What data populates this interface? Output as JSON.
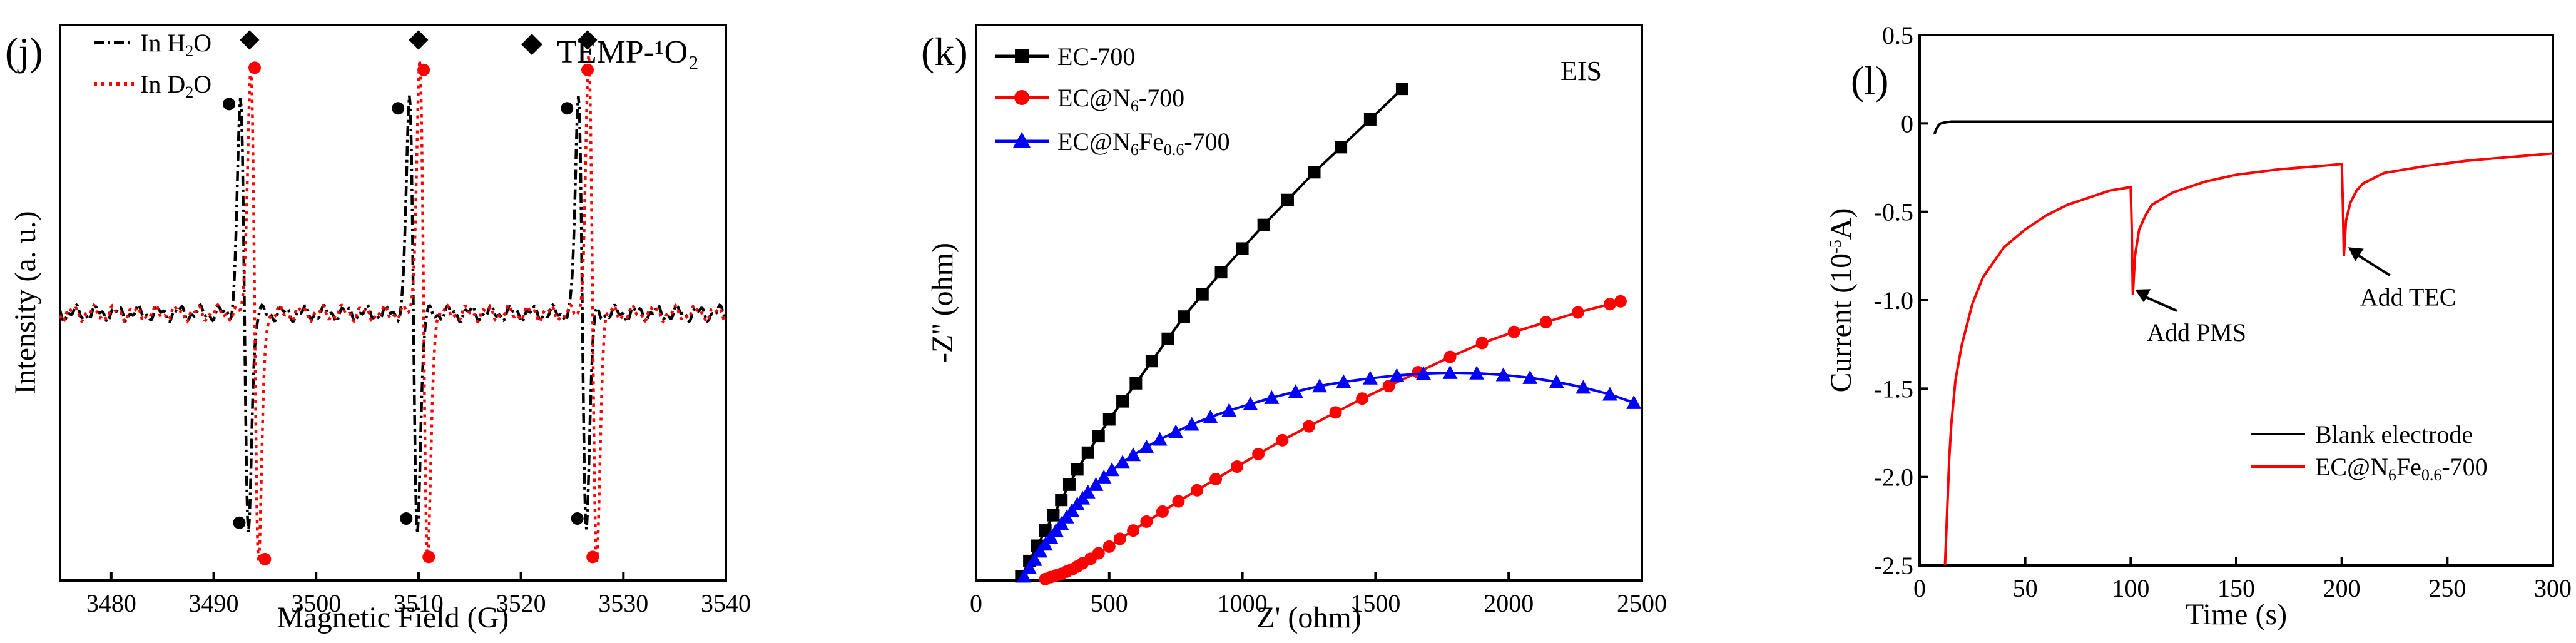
{
  "chart_data": [
    {
      "id": "j",
      "type": "line",
      "panel_label": "(j)",
      "xlabel": "Magnetic Field (G)",
      "ylabel": "Intensity (a. u.)",
      "xlim": [
        3475,
        3540
      ],
      "ylim": [
        -1.25,
        1.35
      ],
      "xticks": [
        3480,
        3490,
        3500,
        3510,
        3520,
        3530,
        3540
      ],
      "yticks_shown": false,
      "marker_label": "TEMP-¹O₂",
      "series": [
        {
          "name": "In H2O",
          "name_main": "In H",
          "name_sub": "2",
          "name_tail": "O",
          "color": "#000000",
          "style": "dash-dot",
          "peaks": [
            3493.0,
            3509.5,
            3526.0
          ],
          "amplitude": 1.0,
          "dots": [
            {
              "x": 3491.5,
              "y": 0.98
            },
            {
              "x": 3492.5,
              "y": -0.98
            },
            {
              "x": 3508.0,
              "y": 0.96
            },
            {
              "x": 3508.8,
              "y": -0.96
            },
            {
              "x": 3524.5,
              "y": 0.96
            },
            {
              "x": 3525.5,
              "y": -0.96
            }
          ]
        },
        {
          "name": "In D2O",
          "name_main": "In D",
          "name_sub": "2",
          "name_tail": "O",
          "color": "#ff0000",
          "style": "dot",
          "peaks": [
            3494.0,
            3510.5,
            3527.0
          ],
          "amplitude": 1.18,
          "dots": [
            {
              "x": 3494.0,
              "y": 1.15
            },
            {
              "x": 3495.0,
              "y": -1.15
            },
            {
              "x": 3510.5,
              "y": 1.14
            },
            {
              "x": 3511.0,
              "y": -1.14
            },
            {
              "x": 3526.5,
              "y": 1.14
            },
            {
              "x": 3527.0,
              "y": -1.14
            }
          ]
        }
      ],
      "diamonds_x": [
        3493.5,
        3510.0,
        3526.5
      ],
      "diamonds_y": 1.28
    },
    {
      "id": "k",
      "type": "line",
      "panel_label": "(k)",
      "annotation": "EIS",
      "xlabel": "Z' (ohm)",
      "ylabel": "-Z'' (ohm)",
      "xlim": [
        0,
        2500
      ],
      "ylim": [
        0,
        2000
      ],
      "xticks": [
        0,
        500,
        1000,
        1500,
        2000,
        2500
      ],
      "yticks_shown": false,
      "series": [
        {
          "name": "EC-700",
          "name_main": "EC-700",
          "name_sub": "",
          "name_tail": "",
          "color": "#000000",
          "marker": "square",
          "x": [
            170,
            200,
            230,
            260,
            290,
            320,
            350,
            380,
            420,
            460,
            500,
            550,
            600,
            660,
            720,
            780,
            850,
            920,
            1000,
            1080,
            1170,
            1270,
            1370,
            1480,
            1600
          ],
          "y": [
            15,
            70,
            125,
            180,
            235,
            290,
            345,
            400,
            460,
            520,
            580,
            645,
            710,
            790,
            870,
            950,
            1030,
            1110,
            1195,
            1280,
            1370,
            1470,
            1560,
            1660,
            1770
          ]
        },
        {
          "name": "EC@N6-700",
          "name_main": "EC@N",
          "name_sub": "6",
          "name_tail": "-700",
          "color": "#ff0000",
          "marker": "circle",
          "x": [
            260,
            280,
            300,
            320,
            340,
            360,
            380,
            400,
            430,
            460,
            500,
            540,
            590,
            640,
            700,
            760,
            830,
            900,
            980,
            1060,
            1150,
            1250,
            1350,
            1450,
            1550,
            1660,
            1780,
            1900,
            2020,
            2140,
            2260,
            2380,
            2420
          ],
          "y": [
            5,
            12,
            18,
            24,
            32,
            40,
            50,
            62,
            78,
            98,
            122,
            150,
            180,
            212,
            248,
            285,
            325,
            365,
            410,
            455,
            505,
            555,
            605,
            655,
            700,
            750,
            805,
            855,
            895,
            930,
            965,
            995,
            1005
          ]
        },
        {
          "name": "EC@N6Fe0.6-700",
          "name_main": "EC@N",
          "name_sub": "6",
          "name_tail": "Fe",
          "name_sub2": "0.6",
          "name_tail2": "-700",
          "color": "#0000ff",
          "marker": "triangle",
          "x": [
            180,
            200,
            220,
            240,
            260,
            280,
            300,
            320,
            340,
            360,
            380,
            400,
            420,
            450,
            480,
            510,
            550,
            590,
            640,
            690,
            750,
            810,
            880,
            950,
            1030,
            1110,
            1200,
            1290,
            1380,
            1480,
            1580,
            1680,
            1780,
            1880,
            1980,
            2080,
            2180,
            2280,
            2380,
            2470
          ],
          "y": [
            15,
            45,
            75,
            105,
            130,
            155,
            180,
            205,
            228,
            252,
            275,
            296,
            318,
            345,
            372,
            398,
            425,
            452,
            480,
            508,
            535,
            562,
            588,
            612,
            635,
            658,
            680,
            700,
            715,
            728,
            738,
            745,
            748,
            746,
            740,
            730,
            715,
            695,
            670,
            640
          ]
        }
      ]
    },
    {
      "id": "l",
      "type": "line",
      "panel_label": "(l)",
      "xlabel": "Time (s)",
      "ylabel": "Current (10",
      "ylabel_sup": "-5",
      "ylabel_tail": "A)",
      "xlim": [
        0,
        300
      ],
      "ylim": [
        -2.5,
        0.5
      ],
      "xticks": [
        0,
        50,
        100,
        150,
        200,
        250,
        300
      ],
      "yticks": [
        0.5,
        0,
        -0.5,
        -1.0,
        -1.5,
        -2.0,
        -2.5
      ],
      "ytick_labels": [
        "0.5",
        "0",
        "-0.5",
        "-1.0",
        "-1.5",
        "-2.0",
        "-2.5"
      ],
      "annotations": [
        {
          "text": "Add PMS",
          "x": 110,
          "y": -1.23,
          "arrow_to": [
            102,
            -0.94
          ]
        },
        {
          "text": "Add TEC",
          "x": 211,
          "y": -1.03,
          "arrow_to": [
            203,
            -0.7
          ]
        }
      ],
      "series": [
        {
          "name": "Blank electrode",
          "name_main": "Blank electrode",
          "name_sub": "",
          "name_tail": "",
          "color": "#000000",
          "x": [
            7,
            8,
            9,
            10,
            12,
            15,
            20,
            40,
            100,
            200,
            300
          ],
          "y": [
            -0.06,
            -0.03,
            -0.01,
            0.0,
            0.005,
            0.01,
            0.01,
            0.01,
            0.01,
            0.01,
            0.01
          ]
        },
        {
          "name": "EC@N6Fe0.6-700",
          "name_main": "EC@N",
          "name_sub": "6",
          "name_tail": "Fe",
          "name_sub2": "0.6",
          "name_tail2": "-700",
          "color": "#ff0000",
          "x": [
            12,
            13,
            14,
            15,
            17,
            20,
            25,
            30,
            40,
            50,
            60,
            70,
            80,
            90,
            100,
            100.5,
            101,
            102,
            104,
            107,
            110,
            120,
            135,
            150,
            170,
            190,
            200,
            200.5,
            201,
            202,
            204,
            207,
            210,
            220,
            240,
            260,
            280,
            300
          ],
          "y": [
            -2.5,
            -2.2,
            -1.9,
            -1.7,
            -1.45,
            -1.25,
            -1.02,
            -0.87,
            -0.7,
            -0.6,
            -0.52,
            -0.46,
            -0.42,
            -0.38,
            -0.36,
            -0.6,
            -0.97,
            -0.75,
            -0.6,
            -0.52,
            -0.46,
            -0.39,
            -0.33,
            -0.29,
            -0.26,
            -0.24,
            -0.23,
            -0.45,
            -0.75,
            -0.55,
            -0.45,
            -0.38,
            -0.34,
            -0.28,
            -0.24,
            -0.21,
            -0.19,
            -0.17
          ]
        }
      ]
    }
  ]
}
